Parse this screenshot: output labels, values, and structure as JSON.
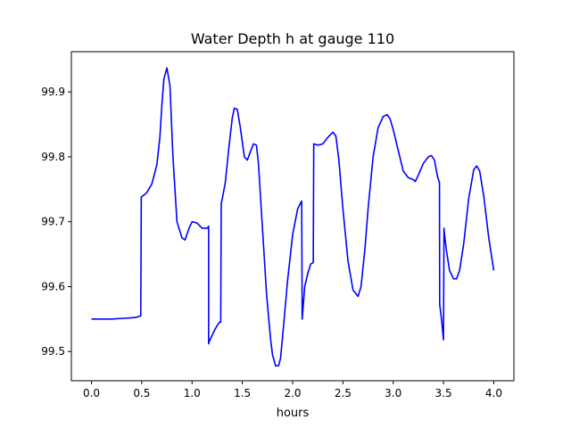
{
  "chart_data": {
    "type": "line",
    "title": "Water Depth h at gauge 110",
    "xlabel": "hours",
    "ylabel": "",
    "xlim": [
      -0.2,
      4.2
    ],
    "ylim": [
      99.455,
      99.962
    ],
    "xticks": [
      0.0,
      0.5,
      1.0,
      1.5,
      2.0,
      2.5,
      3.0,
      3.5,
      4.0
    ],
    "xtick_labels": [
      "0.0",
      "0.5",
      "1.0",
      "1.5",
      "2.0",
      "2.5",
      "3.0",
      "3.5",
      "4.0"
    ],
    "yticks": [
      99.5,
      99.6,
      99.7,
      99.8,
      99.9
    ],
    "ytick_labels": [
      "99.5",
      "99.6",
      "99.7",
      "99.8",
      "99.9"
    ],
    "grid": false,
    "series": [
      {
        "color": "#0000ff",
        "x": [
          0.0,
          0.1,
          0.2,
          0.3,
          0.4,
          0.45,
          0.49,
          0.495,
          0.52,
          0.55,
          0.6,
          0.65,
          0.68,
          0.7,
          0.72,
          0.75,
          0.78,
          0.81,
          0.85,
          0.9,
          0.93,
          0.97,
          1.0,
          1.05,
          1.1,
          1.15,
          1.165,
          1.165,
          1.17,
          1.2,
          1.23,
          1.27,
          1.285,
          1.29,
          1.3,
          1.33,
          1.37,
          1.4,
          1.42,
          1.45,
          1.48,
          1.52,
          1.55,
          1.58,
          1.61,
          1.64,
          1.66,
          1.7,
          1.74,
          1.78,
          1.8,
          1.83,
          1.86,
          1.88,
          1.91,
          1.95,
          2.0,
          2.05,
          2.09,
          2.095,
          2.1,
          2.12,
          2.15,
          2.18,
          2.205,
          2.21,
          2.25,
          2.3,
          2.35,
          2.4,
          2.43,
          2.46,
          2.5,
          2.55,
          2.6,
          2.65,
          2.68,
          2.72,
          2.75,
          2.8,
          2.85,
          2.9,
          2.94,
          2.97,
          3.0,
          3.05,
          3.1,
          3.15,
          3.2,
          3.22,
          3.25,
          3.3,
          3.35,
          3.38,
          3.41,
          3.44,
          3.46,
          3.462,
          3.48,
          3.5,
          3.505,
          3.51,
          3.53,
          3.56,
          3.6,
          3.63,
          3.66,
          3.7,
          3.75,
          3.8,
          3.83,
          3.86,
          3.9,
          3.95,
          4.0
        ],
        "y": [
          99.55,
          99.55,
          99.55,
          99.551,
          99.552,
          99.553,
          99.555,
          99.738,
          99.741,
          99.745,
          99.758,
          99.788,
          99.83,
          99.88,
          99.92,
          99.937,
          99.91,
          99.8,
          99.7,
          99.675,
          99.672,
          99.69,
          99.7,
          99.698,
          99.69,
          99.69,
          99.693,
          99.512,
          99.515,
          99.525,
          99.535,
          99.545,
          99.545,
          99.728,
          99.735,
          99.76,
          99.82,
          99.86,
          99.875,
          99.873,
          99.845,
          99.8,
          99.795,
          99.808,
          99.82,
          99.818,
          99.79,
          99.69,
          99.59,
          99.52,
          99.495,
          99.478,
          99.478,
          99.49,
          99.54,
          99.61,
          99.68,
          99.72,
          99.732,
          99.55,
          99.56,
          99.6,
          99.62,
          99.635,
          99.637,
          99.82,
          99.818,
          99.82,
          99.83,
          99.838,
          99.832,
          99.795,
          99.72,
          99.64,
          99.595,
          99.585,
          99.6,
          99.66,
          99.72,
          99.8,
          99.845,
          99.862,
          99.865,
          99.858,
          99.842,
          99.81,
          99.778,
          99.768,
          99.765,
          99.762,
          99.772,
          99.79,
          99.8,
          99.802,
          99.795,
          99.77,
          99.76,
          99.573,
          99.55,
          99.518,
          99.69,
          99.68,
          99.655,
          99.625,
          99.612,
          99.612,
          99.625,
          99.665,
          99.735,
          99.78,
          99.786,
          99.778,
          99.74,
          99.675,
          99.625
        ]
      }
    ]
  }
}
